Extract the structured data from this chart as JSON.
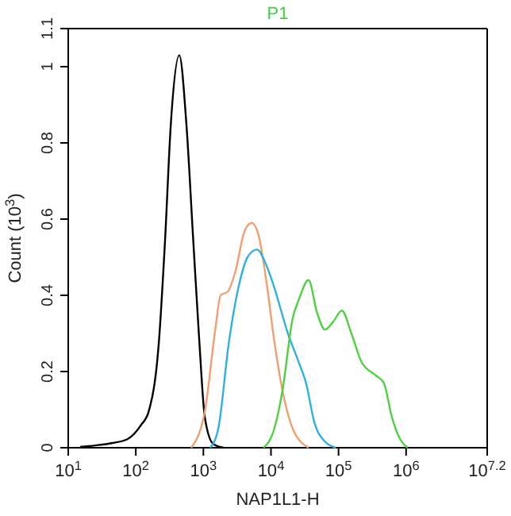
{
  "chart_data": {
    "type": "line",
    "title": "P1",
    "xlabel": "NAP1L1-H",
    "ylabel": "Count (10$^{3}$)",
    "log": "x",
    "xlim": [
      10,
      15848932
    ],
    "ylim": [
      0,
      1.1
    ],
    "xticks": [
      {
        "value": 10,
        "label": "10$^{1}$"
      },
      {
        "value": 100,
        "label": "10$^{2}$"
      },
      {
        "value": 1000,
        "label": "10$^{3}$"
      },
      {
        "value": 10000,
        "label": "10$^{4}$"
      },
      {
        "value": 100000,
        "label": "10$^{5}$"
      },
      {
        "value": 1000000,
        "label": "10$^{6}$"
      },
      {
        "value": 15848932,
        "label": "10$^{7.2}$"
      }
    ],
    "yticks": [
      0,
      0.2,
      0.4,
      0.6,
      0.8,
      1,
      1.1
    ],
    "grid": false,
    "series": [
      {
        "color": "#000000",
        "x": [
          15,
          25,
          44,
          76,
          120,
          155,
          220,
          270,
          330,
          440,
          560,
          710,
          870,
          1050,
          1400,
          2000
        ],
        "values": [
          0.002,
          0.006,
          0.012,
          0.023,
          0.06,
          0.095,
          0.28,
          0.54,
          0.85,
          1.03,
          0.85,
          0.54,
          0.28,
          0.08,
          0.01,
          0
        ]
      },
      {
        "color": "#f0a070",
        "x": [
          660,
          1050,
          1500,
          1800,
          2300,
          2950,
          4100,
          5200,
          6500,
          8500,
          11200,
          14800,
          21000,
          36000
        ],
        "values": [
          0,
          0.095,
          0.31,
          0.4,
          0.41,
          0.46,
          0.57,
          0.59,
          0.56,
          0.44,
          0.28,
          0.15,
          0.05,
          0
        ]
      },
      {
        "color": "#30b0e0",
        "x": [
          1260,
          1660,
          2400,
          3500,
          4500,
          6200,
          8500,
          11200,
          17800,
          25700,
          33000,
          44000,
          63000,
          91000
        ],
        "values": [
          0,
          0.05,
          0.28,
          0.44,
          0.5,
          0.52,
          0.48,
          0.42,
          0.3,
          0.225,
          0.17,
          0.066,
          0.016,
          0
        ]
      },
      {
        "color": "#50d040",
        "x": [
          7800,
          11200,
          14800,
          21000,
          26000,
          36000,
          48000,
          63000,
          83000,
          112000,
          155000,
          219000,
          355000,
          468000,
          617000,
          813000,
          1050000
        ],
        "values": [
          0,
          0.05,
          0.15,
          0.34,
          0.39,
          0.44,
          0.355,
          0.31,
          0.33,
          0.36,
          0.3,
          0.225,
          0.19,
          0.17,
          0.08,
          0.023,
          0
        ]
      }
    ]
  }
}
